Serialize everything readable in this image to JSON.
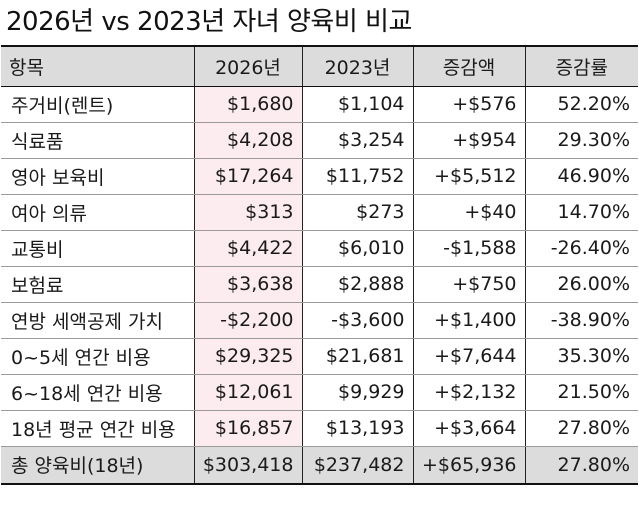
{
  "title": "2026년 vs 2023년 자녀 양육비 비교",
  "headers": [
    "항목",
    "2026년",
    "2023년",
    "증감액",
    "증감률"
  ],
  "rows": [
    [
      "주거비(렌트)",
      "$1,680",
      "$1,104",
      "+$576",
      "52.20%"
    ],
    [
      "식료품",
      "$4,208",
      "$3,254",
      "+$954",
      "29.30%"
    ],
    [
      "영아 보육비",
      "$17,264",
      "$11,752",
      "+$5,512",
      "46.90%"
    ],
    [
      "여아 의류",
      "$313",
      "$273",
      "+$40",
      "14.70%"
    ],
    [
      "교통비",
      "$4,422",
      "$6,010",
      "-$1,588",
      "-26.40%"
    ],
    [
      "보험료",
      "$3,638",
      "$2,888",
      "+$750",
      "26.00%"
    ],
    [
      "연방 세액공제 가치",
      "-$2,200",
      "-$3,600",
      "+$1,400",
      "-38.90%"
    ],
    [
      "0~5세 연간 비용",
      "$29,325",
      "$21,681",
      "+$7,644",
      "35.30%"
    ],
    [
      "6~18세 연간 비용",
      "$12,061",
      "$9,929",
      "+$2,132",
      "21.50%"
    ],
    [
      "18년 평균 연간 비용",
      "$16,857",
      "$13,193",
      "+$3,664",
      "27.80%"
    ]
  ],
  "total": [
    "총 양육비(18년)",
    "$303,418",
    "$237,482",
    "+$65,936",
    "27.80%"
  ],
  "colors": {
    "header_bg": "#dcdcdc",
    "highlight_2026": "#fcecef",
    "border": "#222222"
  }
}
